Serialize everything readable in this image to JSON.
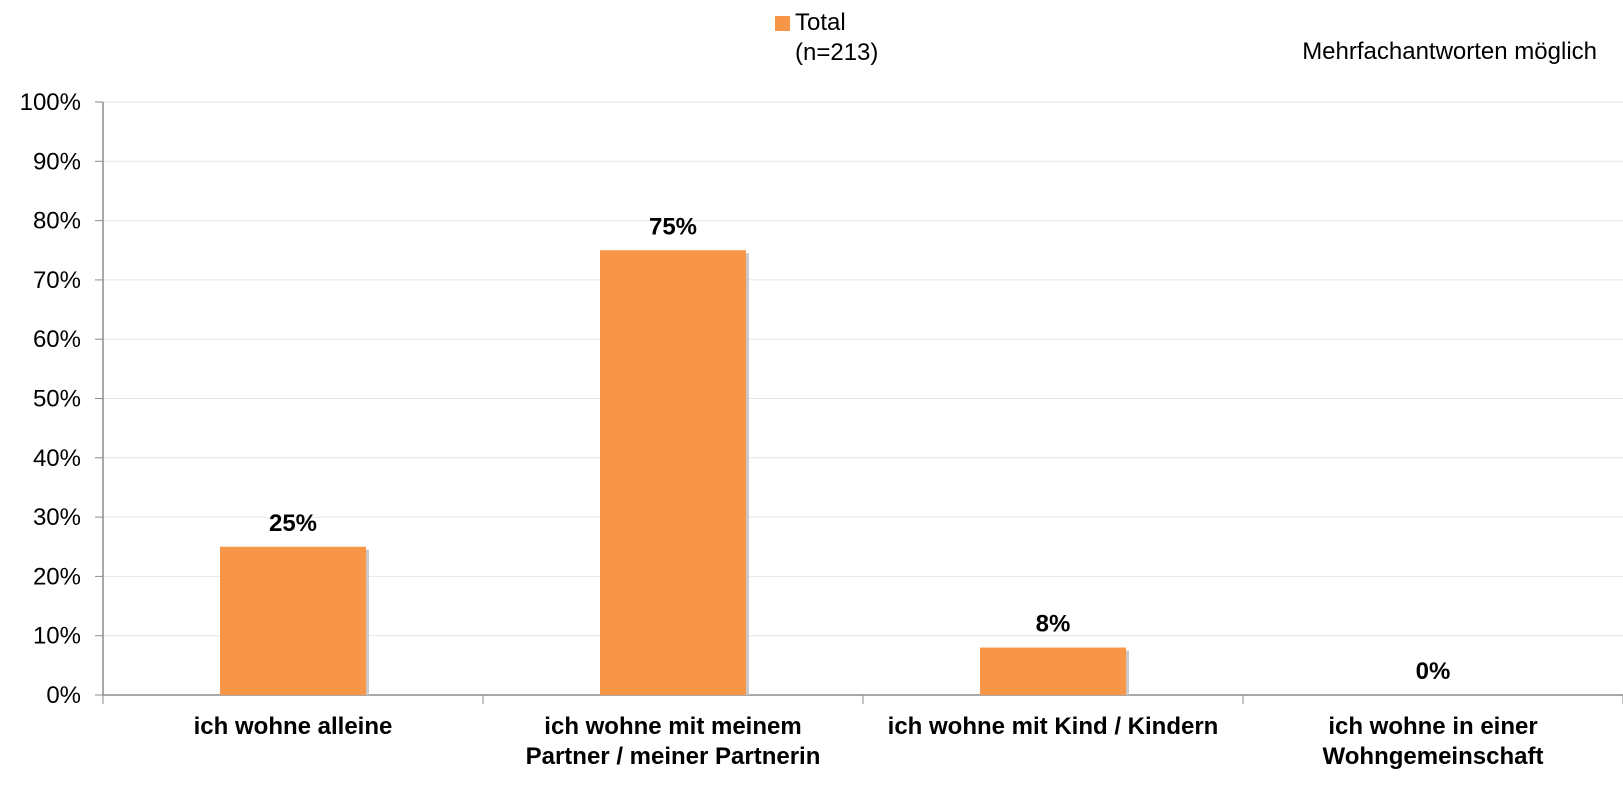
{
  "chart_data": {
    "type": "bar",
    "categories": [
      [
        "ich wohne alleine"
      ],
      [
        "ich wohne mit meinem",
        "Partner / meiner Partnerin"
      ],
      [
        "ich wohne mit Kind / Kindern"
      ],
      [
        "ich wohne in einer",
        "Wohngemeinschaft"
      ]
    ],
    "values": [
      25,
      75,
      8,
      0
    ],
    "value_labels": [
      "25%",
      "75%",
      "8%",
      "0%"
    ],
    "series": [
      {
        "name": "Total",
        "values": [
          25,
          75,
          8,
          0
        ]
      }
    ],
    "legend": {
      "name": "Total",
      "n": "(n=213)",
      "placement": "top-center"
    },
    "note": "Mehrfachantworten möglich",
    "ylim": [
      0,
      100
    ],
    "yticks": [
      "0%",
      "10%",
      "20%",
      "30%",
      "40%",
      "50%",
      "60%",
      "70%",
      "80%",
      "90%",
      "100%"
    ],
    "grid": true,
    "colors": {
      "bar": "#F79646",
      "bar_shadow": "#c9c9c9",
      "grid": "#e6e6e6",
      "axis": "#8c8c8c"
    }
  }
}
